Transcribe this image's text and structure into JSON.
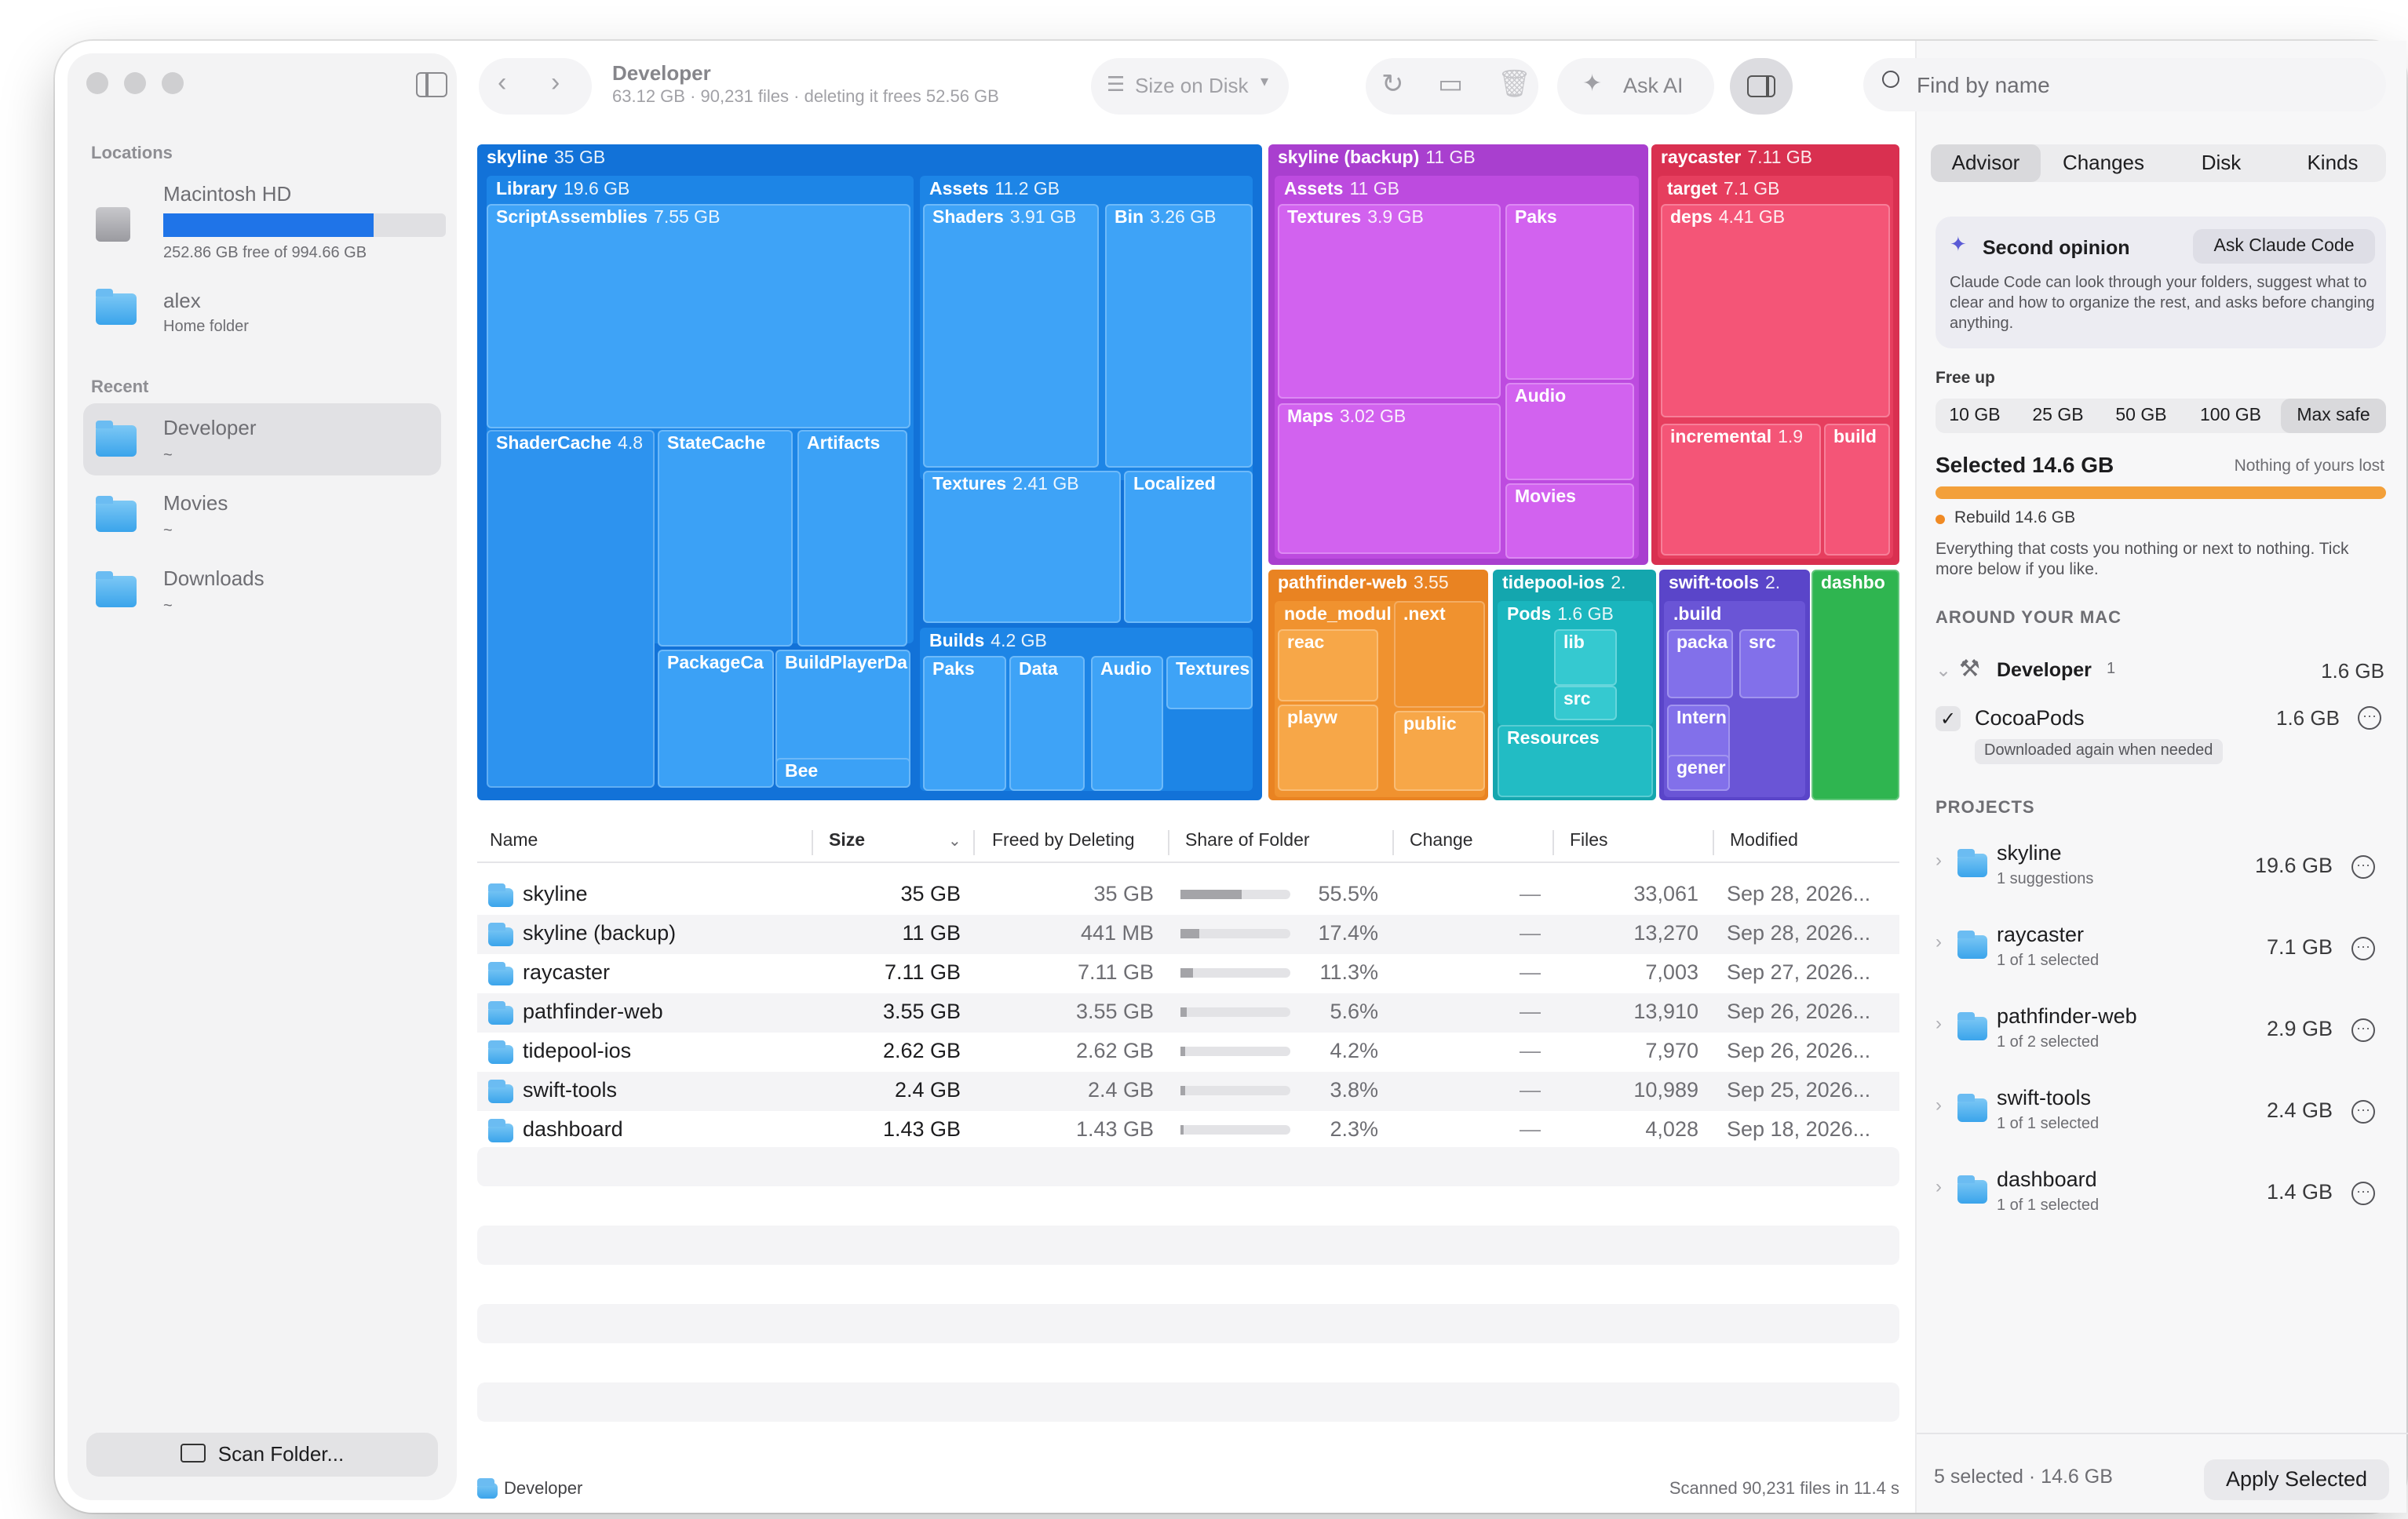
{
  "sidebar": {
    "locations_header": "Locations",
    "locations": [
      {
        "name": "Macintosh HD",
        "sub": "252.86 GB free of 994.66 GB",
        "used_fraction": 0.746
      },
      {
        "name": "alex",
        "sub": "Home folder"
      }
    ],
    "recent_header": "Recent",
    "recent": [
      {
        "name": "Developer",
        "sub": "~"
      },
      {
        "name": "Movies",
        "sub": "~"
      },
      {
        "name": "Downloads",
        "sub": "~"
      }
    ],
    "scan_button": "Scan Folder..."
  },
  "toolbar": {
    "title": "Developer",
    "subtitle": "63.12 GB · 90,231 files · deleting it frees 52.56 GB",
    "size_mode": "Size on Disk",
    "ask_ai": "Ask AI"
  },
  "search": {
    "placeholder": "Find by name"
  },
  "treemap": [
    {
      "name": "skyline",
      "size": "35 GB",
      "color": "#1272d8"
    },
    {
      "name": "Library",
      "size": "19.6 GB",
      "color": "#1d85e6"
    },
    {
      "name": "ScriptAssemblies",
      "size": "7.55 GB",
      "color": "#3ea3f7"
    },
    {
      "name": "ShaderCache",
      "size": "4.8",
      "color": "#2d93ef"
    },
    {
      "name": "StateCache",
      "size": "",
      "color": "#3ba1f6"
    },
    {
      "name": "Artifacts",
      "size": "",
      "color": "#3ba1f6"
    },
    {
      "name": "PackageCa",
      "size": "",
      "color": "#3ba1f6"
    },
    {
      "name": "BuildPlayerDa",
      "size": "",
      "color": "#3ba1f6"
    },
    {
      "name": "Bee",
      "size": "",
      "color": "#3ba1f6"
    },
    {
      "name": "Assets",
      "size": "11.2 GB",
      "color": "#1d85e6"
    },
    {
      "name": "Shaders",
      "size": "3.91 GB",
      "color": "#3ea3f7"
    },
    {
      "name": "Bin",
      "size": "3.26 GB",
      "color": "#3ea3f7"
    },
    {
      "name": "Textures",
      "size": "2.41 GB",
      "color": "#3ea3f7"
    },
    {
      "name": "Localized",
      "size": "",
      "color": "#3ea3f7"
    },
    {
      "name": "Builds",
      "size": "4.2 GB",
      "color": "#1d85e6"
    },
    {
      "name": "Paks",
      "size": "",
      "color": "#3ea3f7"
    },
    {
      "name": "Data",
      "size": "",
      "color": "#3ea3f7"
    },
    {
      "name": "Audio",
      "size": "",
      "color": "#3ea3f7"
    },
    {
      "name": "Textures",
      "size": "",
      "color": "#3ea3f7"
    },
    {
      "name": "skyline (backup)",
      "size": "11 GB",
      "color": "#a93fcf"
    },
    {
      "name": "Assets",
      "size": "11 GB",
      "color": "#bd4bdf"
    },
    {
      "name": "Textures",
      "size": "3.9 GB",
      "color": "#d262ef"
    },
    {
      "name": "Paks",
      "size": "",
      "color": "#d262ef"
    },
    {
      "name": "Maps",
      "size": "3.02 GB",
      "color": "#d262ef"
    },
    {
      "name": "Audio",
      "size": "",
      "color": "#d262ef"
    },
    {
      "name": "Movies",
      "size": "",
      "color": "#d262ef"
    },
    {
      "name": "raycaster",
      "size": "7.11 GB",
      "color": "#d93050"
    },
    {
      "name": "target",
      "size": "7.1 GB",
      "color": "#e63e5e"
    },
    {
      "name": "deps",
      "size": "4.41 GB",
      "color": "#f45577"
    },
    {
      "name": "incremental",
      "size": "1.9",
      "color": "#f45577"
    },
    {
      "name": "build",
      "size": "",
      "color": "#f45577"
    },
    {
      "name": "pathfinder-web",
      "size": "3.55",
      "color": "#e98322"
    },
    {
      "name": "node_modul",
      "size": "",
      "color": "#f0922f"
    },
    {
      "name": "reac",
      "size": "",
      "color": "#f7a748"
    },
    {
      "name": ".next",
      "size": "",
      "color": "#f0922f"
    },
    {
      "name": "playw",
      "size": "",
      "color": "#f7a748"
    },
    {
      "name": "public",
      "size": "",
      "color": "#f7a748"
    },
    {
      "name": "tidepool-ios",
      "size": "2.",
      "color": "#14a6ae"
    },
    {
      "name": "Pods",
      "size": "1.6 GB",
      "color": "#1ab6be"
    },
    {
      "name": "lib",
      "size": "",
      "color": "#35c9d0"
    },
    {
      "name": "src",
      "size": "",
      "color": "#35c9d0"
    },
    {
      "name": "Resources",
      "size": "",
      "color": "#22bcc4"
    },
    {
      "name": "swift-tools",
      "size": "2.",
      "color": "#5a45c9"
    },
    {
      "name": ".build",
      "size": "",
      "color": "#6a55d6"
    },
    {
      "name": "packa",
      "size": "",
      "color": "#8270ea"
    },
    {
      "name": "src",
      "size": "",
      "color": "#8270ea"
    },
    {
      "name": "Intern",
      "size": "",
      "color": "#8270ea"
    },
    {
      "name": "gener",
      "size": "",
      "color": "#8270ea"
    },
    {
      "name": "dashbo",
      "size": "",
      "color": "#2fb550"
    }
  ],
  "table": {
    "columns": [
      "Name",
      "Size",
      "Freed by Deleting",
      "Share of Folder",
      "Change",
      "Files",
      "Modified"
    ],
    "rows": [
      {
        "name": "skyline",
        "size": "35 GB",
        "freed": "35 GB",
        "share": "55.5%",
        "share_fraction": 0.555,
        "change": "—",
        "files": "33,061",
        "modified": "Sep 28, 2026..."
      },
      {
        "name": "skyline (backup)",
        "size": "11 GB",
        "freed": "441 MB",
        "share": "17.4%",
        "share_fraction": 0.174,
        "change": "—",
        "files": "13,270",
        "modified": "Sep 28, 2026..."
      },
      {
        "name": "raycaster",
        "size": "7.11 GB",
        "freed": "7.11 GB",
        "share": "11.3%",
        "share_fraction": 0.113,
        "change": "—",
        "files": "7,003",
        "modified": "Sep 27, 2026..."
      },
      {
        "name": "pathfinder-web",
        "size": "3.55 GB",
        "freed": "3.55 GB",
        "share": "5.6%",
        "share_fraction": 0.056,
        "change": "—",
        "files": "13,910",
        "modified": "Sep 26, 2026..."
      },
      {
        "name": "tidepool-ios",
        "size": "2.62 GB",
        "freed": "2.62 GB",
        "share": "4.2%",
        "share_fraction": 0.042,
        "change": "—",
        "files": "7,970",
        "modified": "Sep 26, 2026..."
      },
      {
        "name": "swift-tools",
        "size": "2.4 GB",
        "freed": "2.4 GB",
        "share": "3.8%",
        "share_fraction": 0.038,
        "change": "—",
        "files": "10,989",
        "modified": "Sep 25, 2026..."
      },
      {
        "name": "dashboard",
        "size": "1.43 GB",
        "freed": "1.43 GB",
        "share": "2.3%",
        "share_fraction": 0.023,
        "change": "—",
        "files": "4,028",
        "modified": "Sep 18, 2026..."
      }
    ]
  },
  "footer": {
    "path": "Developer",
    "status": "Scanned 90,231 files in 11.4 s"
  },
  "advisor": {
    "tabs": [
      "Advisor",
      "Changes",
      "Disk",
      "Kinds"
    ],
    "second_opinion": {
      "title": "Second opinion",
      "button": "Ask Claude Code",
      "body": "Claude Code can look through your folders, suggest what to clear and how to organize the rest, and asks before changing anything."
    },
    "free_up_label": "Free up",
    "free_up_options": [
      "10 GB",
      "25 GB",
      "50 GB",
      "100 GB",
      "Max safe"
    ],
    "selected_title": "Selected 14.6 GB",
    "selected_note": "Nothing of yours lost",
    "rebuild_label": "Rebuild 14.6 GB",
    "rebuild_note": "Everything that costs you nothing or next to nothing. Tick more below if you like.",
    "around_header": "AROUND YOUR MAC",
    "developer_group": {
      "name": "Developer",
      "count": "1",
      "size": "1.6 GB"
    },
    "cocoapods": {
      "name": "CocoaPods",
      "size": "1.6 GB",
      "note": "Downloaded again when needed"
    },
    "projects_header": "PROJECTS",
    "projects": [
      {
        "name": "skyline",
        "sub": "1 suggestions",
        "size": "19.6 GB"
      },
      {
        "name": "raycaster",
        "sub": "1 of 1 selected",
        "size": "7.1 GB"
      },
      {
        "name": "pathfinder-web",
        "sub": "1 of 2 selected",
        "size": "2.9 GB"
      },
      {
        "name": "swift-tools",
        "sub": "1 of 1 selected",
        "size": "2.4 GB"
      },
      {
        "name": "dashboard",
        "sub": "1 of 1 selected",
        "size": "1.4 GB"
      }
    ],
    "summary": "5 selected · 14.6 GB",
    "apply_button": "Apply Selected"
  }
}
